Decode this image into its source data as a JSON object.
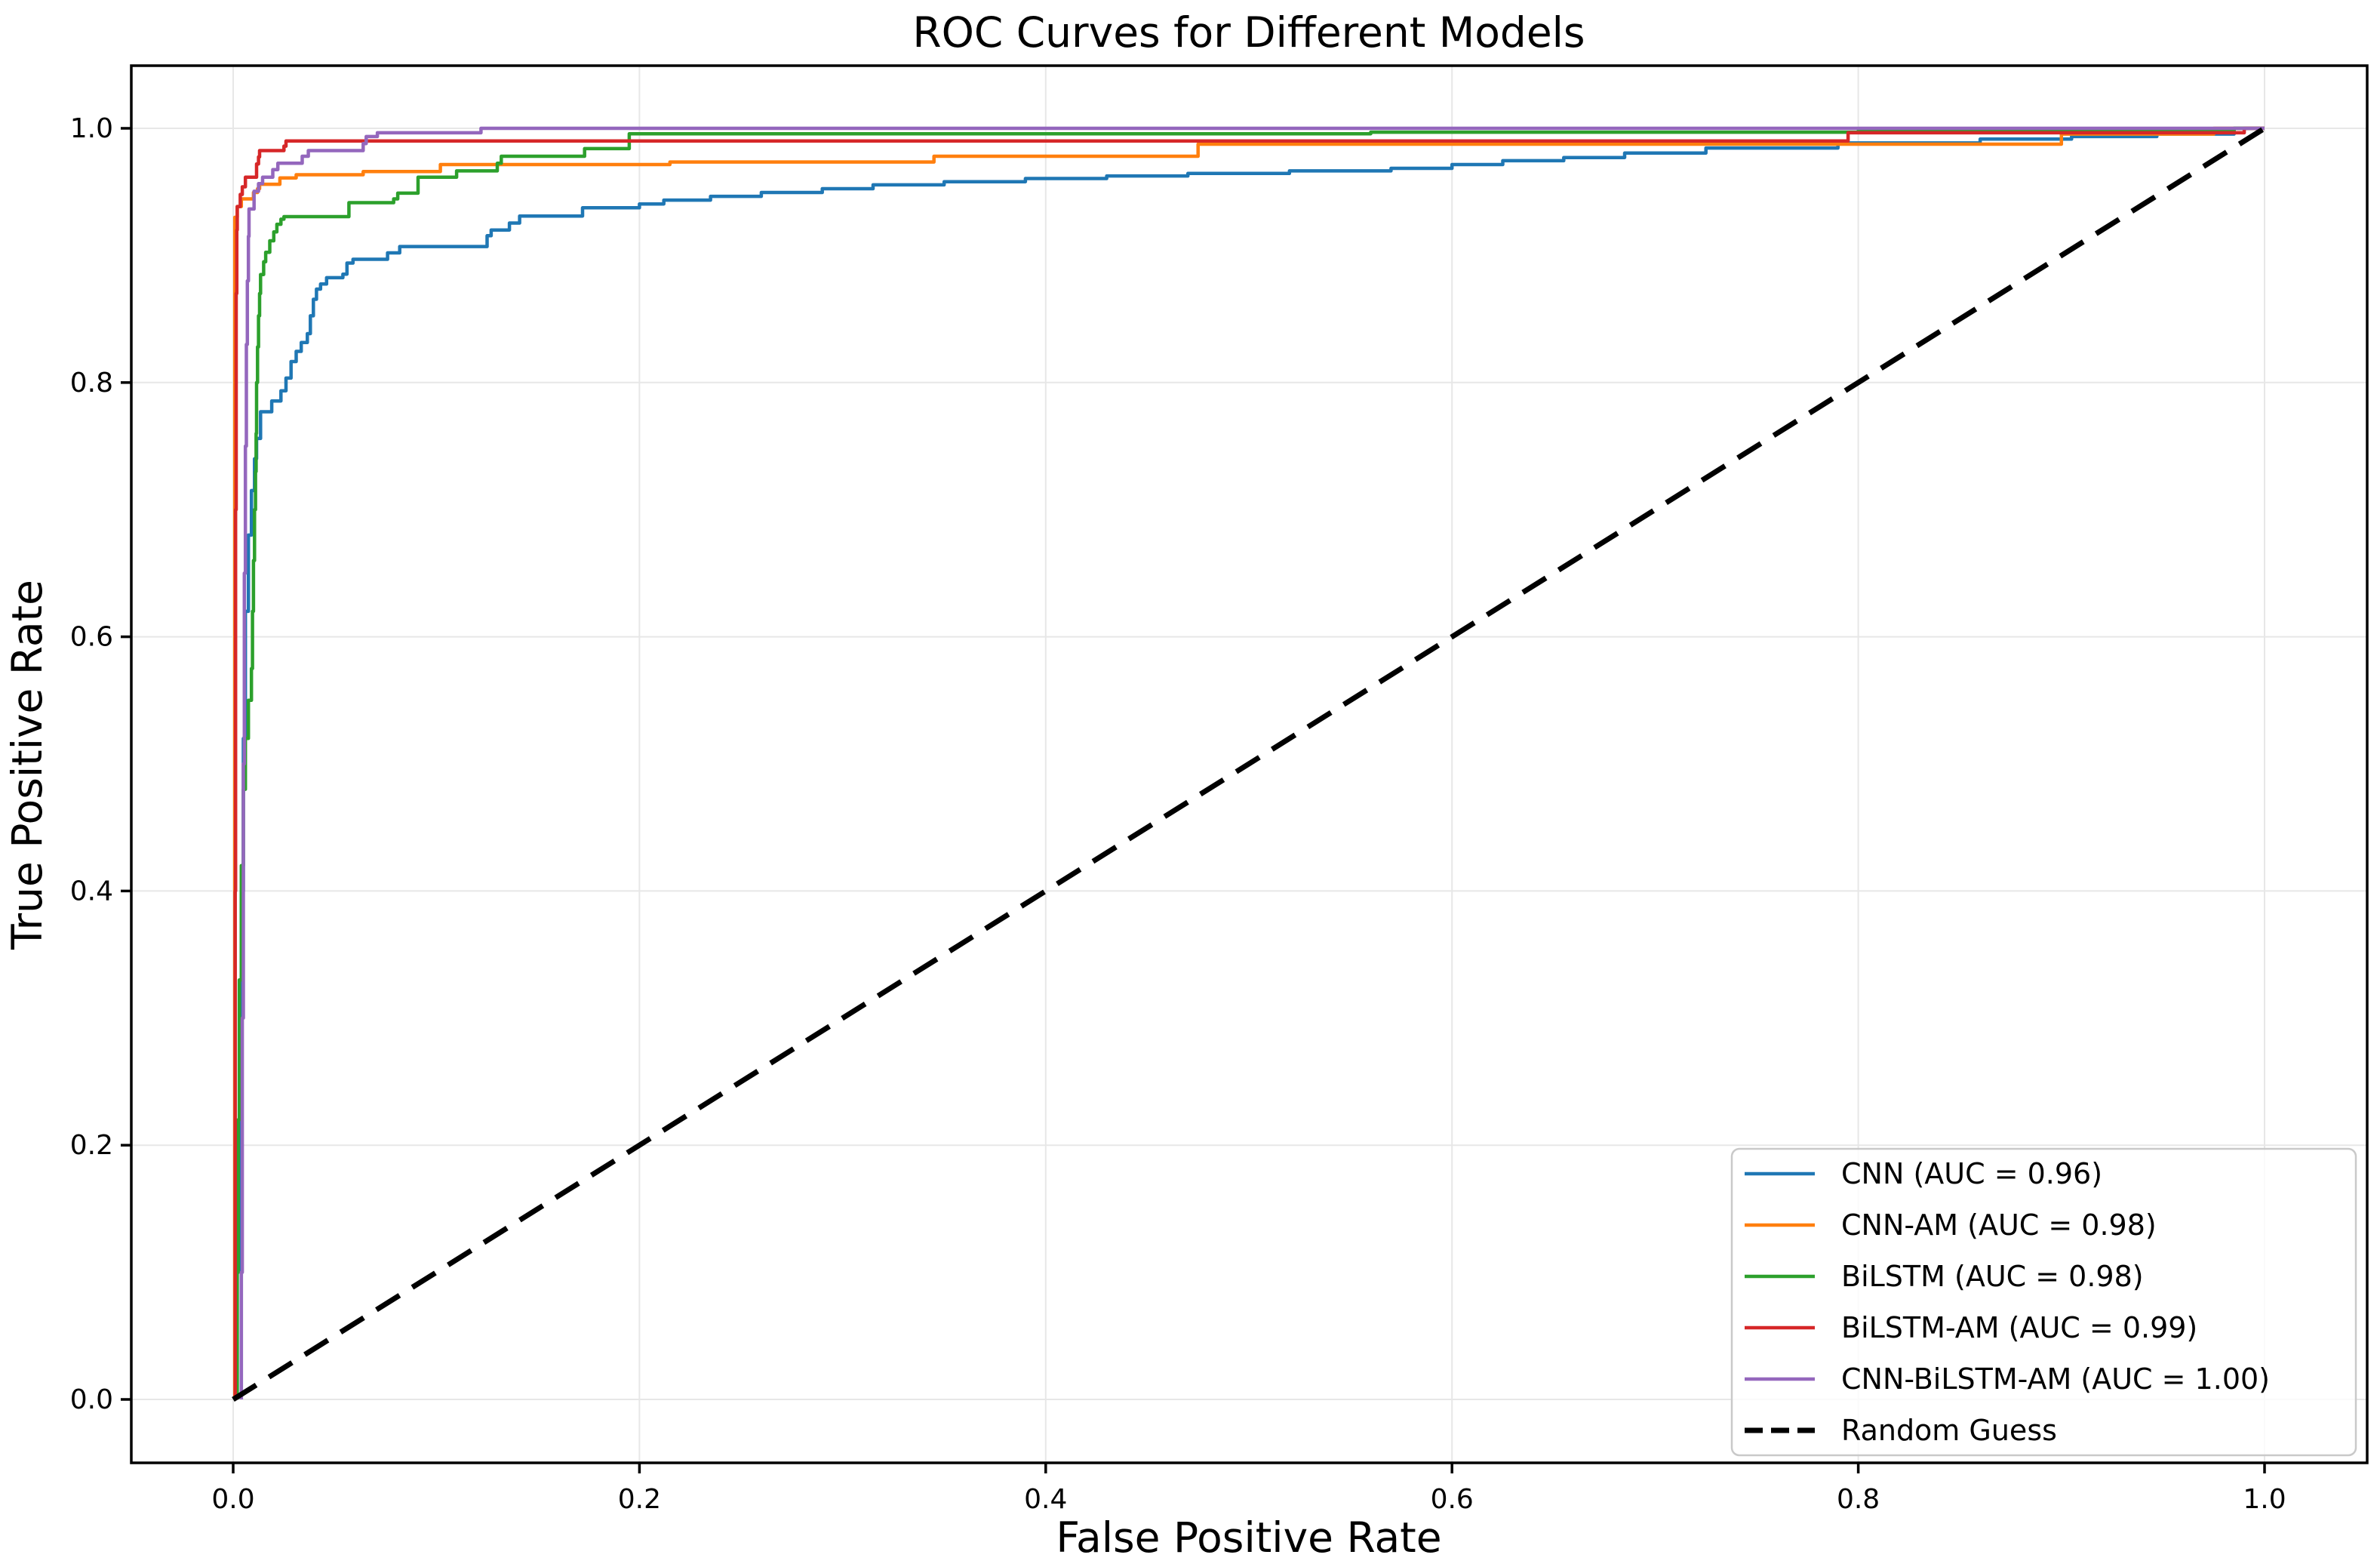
{
  "chart_data": {
    "type": "line",
    "subtype": "roc-step-curves",
    "title": "ROC Curves for Different Models",
    "xlabel": "False Positive Rate",
    "ylabel": "True Positive Rate",
    "xlim": [
      -0.05,
      1.05
    ],
    "ylim": [
      -0.05,
      1.05
    ],
    "grid": true,
    "x_ticks": {
      "values": [
        0.0,
        0.2,
        0.4,
        0.6,
        0.8,
        1.0
      ],
      "labels": [
        "0.0",
        "0.2",
        "0.4",
        "0.6",
        "0.8",
        "1.0"
      ]
    },
    "y_ticks": {
      "values": [
        0.0,
        0.2,
        0.4,
        0.6,
        0.8,
        1.0
      ],
      "labels": [
        "0.0",
        "0.2",
        "0.4",
        "0.6",
        "0.8",
        "1.0"
      ]
    },
    "legend": {
      "position": "lower right"
    },
    "series": [
      {
        "name": "cnn",
        "label": "CNN (AUC = 0.96)",
        "auc": 0.96,
        "color": "#1f77b4",
        "style": "step",
        "points": [
          [
            0.004,
            0.4
          ],
          [
            0.005,
            0.52
          ],
          [
            0.006,
            0.62
          ],
          [
            0.0075,
            0.68
          ],
          [
            0.009,
            0.715
          ],
          [
            0.0105,
            0.74
          ],
          [
            0.0115,
            0.756
          ],
          [
            0.0135,
            0.777
          ],
          [
            0.019,
            0.7855
          ],
          [
            0.0235,
            0.7935
          ],
          [
            0.026,
            0.8035
          ],
          [
            0.0285,
            0.8165
          ],
          [
            0.031,
            0.8245
          ],
          [
            0.0335,
            0.8315
          ],
          [
            0.0365,
            0.8385
          ],
          [
            0.038,
            0.8525
          ],
          [
            0.0395,
            0.8655
          ],
          [
            0.041,
            0.8735
          ],
          [
            0.043,
            0.8775
          ],
          [
            0.046,
            0.8825
          ],
          [
            0.054,
            0.8853
          ],
          [
            0.056,
            0.894
          ],
          [
            0.059,
            0.897
          ],
          [
            0.076,
            0.902
          ],
          [
            0.082,
            0.907
          ],
          [
            0.125,
            0.9155
          ],
          [
            0.127,
            0.92
          ],
          [
            0.136,
            0.9255
          ],
          [
            0.141,
            0.931
          ],
          [
            0.172,
            0.9375
          ],
          [
            0.2,
            0.9405
          ],
          [
            0.212,
            0.9435
          ],
          [
            0.235,
            0.9465
          ],
          [
            0.26,
            0.9495
          ],
          [
            0.29,
            0.9525
          ],
          [
            0.315,
            0.9555
          ],
          [
            0.35,
            0.958
          ],
          [
            0.39,
            0.9605
          ],
          [
            0.43,
            0.9625
          ],
          [
            0.47,
            0.9645
          ],
          [
            0.52,
            0.9665
          ],
          [
            0.57,
            0.9685
          ],
          [
            0.6,
            0.9715
          ],
          [
            0.625,
            0.9745
          ],
          [
            0.655,
            0.977
          ],
          [
            0.685,
            0.9805
          ],
          [
            0.725,
            0.9845
          ],
          [
            0.79,
            0.9885
          ],
          [
            0.86,
            0.9915
          ],
          [
            0.905,
            0.9935
          ],
          [
            0.947,
            0.9955
          ],
          [
            0.985,
            1.0
          ],
          [
            1.0,
            1.0
          ]
        ]
      },
      {
        "name": "cnn-am",
        "label": "CNN-AM (AUC = 0.98)",
        "auc": 0.98,
        "color": "#ff7f0e",
        "style": "step",
        "points": [
          [
            0.0008,
            0.93
          ],
          [
            0.002,
            0.9385
          ],
          [
            0.004,
            0.9445
          ],
          [
            0.01,
            0.9495
          ],
          [
            0.012,
            0.9525
          ],
          [
            0.013,
            0.956
          ],
          [
            0.023,
            0.961
          ],
          [
            0.031,
            0.9635
          ],
          [
            0.064,
            0.966
          ],
          [
            0.102,
            0.9715
          ],
          [
            0.215,
            0.9735
          ],
          [
            0.345,
            0.978
          ],
          [
            0.475,
            0.9875
          ],
          [
            0.9,
            0.9955
          ],
          [
            0.975,
            1.0
          ],
          [
            1.0,
            1.0
          ]
        ]
      },
      {
        "name": "bilstm",
        "label": "BiLSTM (AUC = 0.98)",
        "auc": 0.98,
        "color": "#2ca02c",
        "style": "step",
        "points": [
          [
            0.002,
            0.1
          ],
          [
            0.0025,
            0.22
          ],
          [
            0.003,
            0.33
          ],
          [
            0.004,
            0.42
          ],
          [
            0.005,
            0.48
          ],
          [
            0.006,
            0.52
          ],
          [
            0.0075,
            0.55
          ],
          [
            0.009,
            0.575
          ],
          [
            0.0095,
            0.62
          ],
          [
            0.01,
            0.66
          ],
          [
            0.0105,
            0.7
          ],
          [
            0.011,
            0.73
          ],
          [
            0.0113,
            0.76
          ],
          [
            0.0115,
            0.8
          ],
          [
            0.012,
            0.828
          ],
          [
            0.0125,
            0.8525
          ],
          [
            0.013,
            0.87
          ],
          [
            0.0135,
            0.885
          ],
          [
            0.015,
            0.895
          ],
          [
            0.016,
            0.9025
          ],
          [
            0.018,
            0.9115
          ],
          [
            0.02,
            0.9185
          ],
          [
            0.0215,
            0.9245
          ],
          [
            0.0235,
            0.9285
          ],
          [
            0.025,
            0.9305
          ],
          [
            0.057,
            0.9415
          ],
          [
            0.079,
            0.9445
          ],
          [
            0.081,
            0.949
          ],
          [
            0.091,
            0.9615
          ],
          [
            0.11,
            0.9665
          ],
          [
            0.13,
            0.9725
          ],
          [
            0.132,
            0.978
          ],
          [
            0.173,
            0.984
          ],
          [
            0.195,
            0.9957
          ],
          [
            0.56,
            0.997
          ],
          [
            0.8,
            0.998
          ],
          [
            0.985,
            1.0
          ],
          [
            1.0,
            1.0
          ]
        ]
      },
      {
        "name": "bilstm-am",
        "label": "BiLSTM-AM (AUC = 0.99)",
        "auc": 0.99,
        "color": "#d62728",
        "style": "step",
        "points": [
          [
            0.001,
            0.4
          ],
          [
            0.0012,
            0.7
          ],
          [
            0.0015,
            0.87
          ],
          [
            0.0018,
            0.92
          ],
          [
            0.002,
            0.9385
          ],
          [
            0.0035,
            0.948
          ],
          [
            0.0045,
            0.954
          ],
          [
            0.006,
            0.9615
          ],
          [
            0.0115,
            0.972
          ],
          [
            0.0125,
            0.9775
          ],
          [
            0.013,
            0.9825
          ],
          [
            0.025,
            0.986
          ],
          [
            0.026,
            0.99
          ],
          [
            0.795,
            0.9965
          ],
          [
            0.99,
            1.0
          ],
          [
            1.0,
            1.0
          ]
        ]
      },
      {
        "name": "cnn-bilstm-am",
        "label": "CNN-BiLSTM-AM (AUC = 1.00)",
        "auc": 1.0,
        "color": "#9467bd",
        "style": "step",
        "points": [
          [
            0.004,
            0.1
          ],
          [
            0.0045,
            0.3
          ],
          [
            0.005,
            0.5
          ],
          [
            0.0055,
            0.65
          ],
          [
            0.006,
            0.75
          ],
          [
            0.0065,
            0.83
          ],
          [
            0.007,
            0.88
          ],
          [
            0.0075,
            0.915
          ],
          [
            0.0078,
            0.9365
          ],
          [
            0.0103,
            0.9505
          ],
          [
            0.0125,
            0.9565
          ],
          [
            0.0145,
            0.9615
          ],
          [
            0.0195,
            0.9675
          ],
          [
            0.022,
            0.9725
          ],
          [
            0.034,
            0.978
          ],
          [
            0.037,
            0.9825
          ],
          [
            0.064,
            0.988
          ],
          [
            0.0655,
            0.9935
          ],
          [
            0.071,
            0.9965
          ],
          [
            0.122,
            1.0
          ],
          [
            1.0,
            1.0
          ]
        ]
      },
      {
        "name": "random-guess",
        "label": "Random Guess",
        "color": "#000000",
        "style": "dashed",
        "points": [
          [
            0.0,
            0.0
          ],
          [
            1.0,
            1.0
          ]
        ]
      }
    ]
  },
  "colors": {
    "background": "#ffffff",
    "grid": "#e7e7e7",
    "spine": "#000000",
    "text": "#000000",
    "legend_border": "#c9c9c9",
    "legend_fill": "rgba(255,255,255,0.8)"
  }
}
